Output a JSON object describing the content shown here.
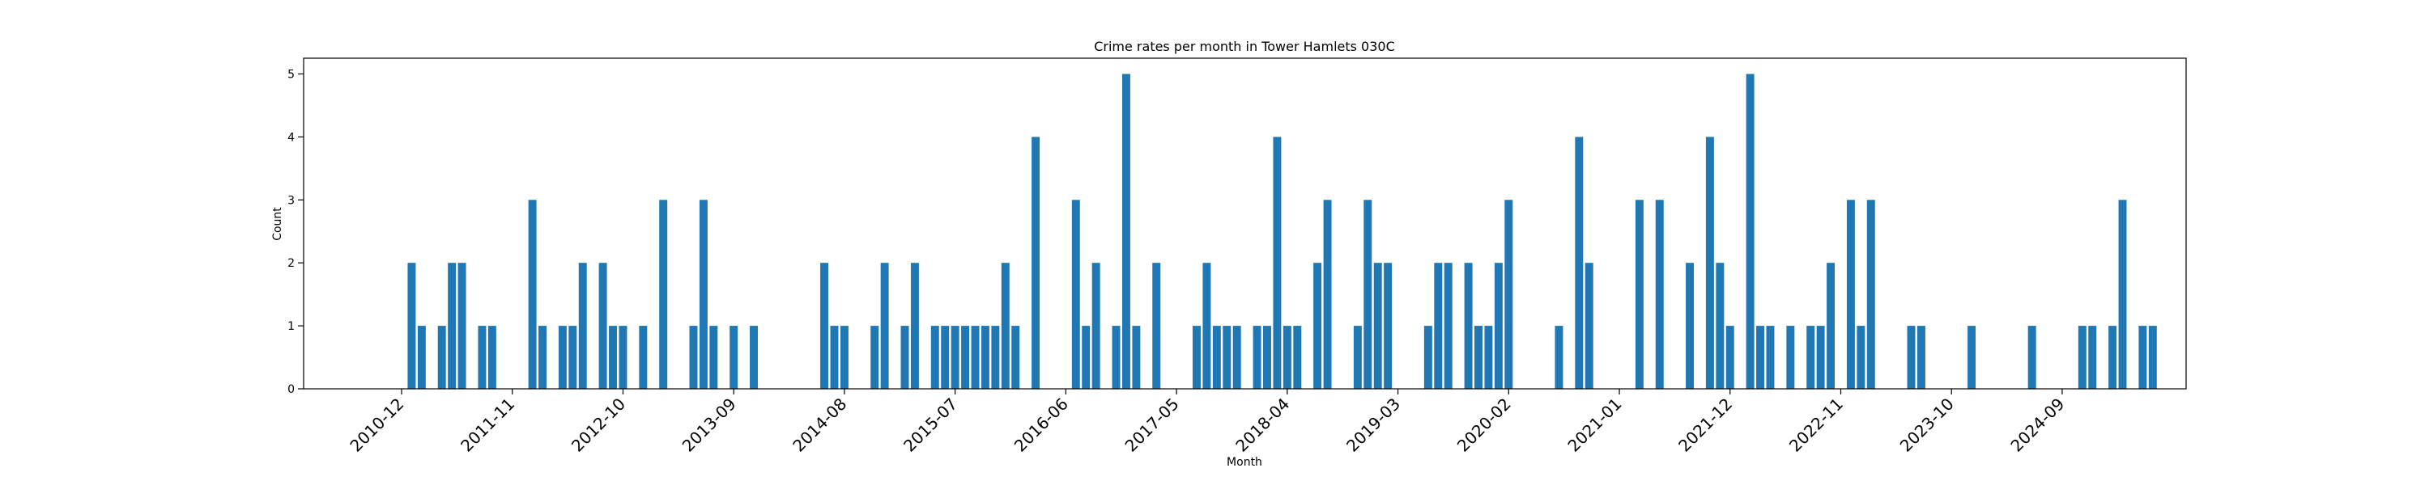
{
  "chart_data": {
    "type": "bar",
    "title": "Crime rates per month in Tower Hamlets 030C",
    "xlabel": "Month",
    "ylabel": "Count",
    "x_tick_labels": [
      "2010-12",
      "2011-11",
      "2012-10",
      "2013-09",
      "2014-08",
      "2015-07",
      "2016-06",
      "2017-05",
      "2018-04",
      "2019-03",
      "2020-02",
      "2021-01",
      "2021-12",
      "2022-11",
      "2023-10",
      "2024-09"
    ],
    "y_tick_labels": [
      "0",
      "1",
      "2",
      "3",
      "4",
      "5"
    ],
    "ylim": [
      0,
      5.25
    ],
    "grid": false,
    "bar_color": "#1f77b4",
    "series": [
      {
        "points": [
          {
            "month": "2011-01",
            "value": 2
          },
          {
            "month": "2011-02",
            "value": 1
          },
          {
            "month": "2011-04",
            "value": 1
          },
          {
            "month": "2011-05",
            "value": 2
          },
          {
            "month": "2011-06",
            "value": 2
          },
          {
            "month": "2011-08",
            "value": 1
          },
          {
            "month": "2011-09",
            "value": 1
          },
          {
            "month": "2012-01",
            "value": 3
          },
          {
            "month": "2012-02",
            "value": 1
          },
          {
            "month": "2012-04",
            "value": 1
          },
          {
            "month": "2012-05",
            "value": 1
          },
          {
            "month": "2012-06",
            "value": 2
          },
          {
            "month": "2012-08",
            "value": 2
          },
          {
            "month": "2012-09",
            "value": 1
          },
          {
            "month": "2012-10",
            "value": 1
          },
          {
            "month": "2012-12",
            "value": 1
          },
          {
            "month": "2013-02",
            "value": 3
          },
          {
            "month": "2013-05",
            "value": 1
          },
          {
            "month": "2013-06",
            "value": 3
          },
          {
            "month": "2013-07",
            "value": 1
          },
          {
            "month": "2013-09",
            "value": 1
          },
          {
            "month": "2013-11",
            "value": 1
          },
          {
            "month": "2014-06",
            "value": 2
          },
          {
            "month": "2014-07",
            "value": 1
          },
          {
            "month": "2014-08",
            "value": 1
          },
          {
            "month": "2014-11",
            "value": 1
          },
          {
            "month": "2014-12",
            "value": 2
          },
          {
            "month": "2015-02",
            "value": 1
          },
          {
            "month": "2015-03",
            "value": 2
          },
          {
            "month": "2015-05",
            "value": 1
          },
          {
            "month": "2015-06",
            "value": 1
          },
          {
            "month": "2015-07",
            "value": 1
          },
          {
            "month": "2015-08",
            "value": 1
          },
          {
            "month": "2015-09",
            "value": 1
          },
          {
            "month": "2015-10",
            "value": 1
          },
          {
            "month": "2015-11",
            "value": 1
          },
          {
            "month": "2015-12",
            "value": 2
          },
          {
            "month": "2016-01",
            "value": 1
          },
          {
            "month": "2016-03",
            "value": 4
          },
          {
            "month": "2016-07",
            "value": 3
          },
          {
            "month": "2016-08",
            "value": 1
          },
          {
            "month": "2016-09",
            "value": 2
          },
          {
            "month": "2016-11",
            "value": 1
          },
          {
            "month": "2016-12",
            "value": 5
          },
          {
            "month": "2017-01",
            "value": 1
          },
          {
            "month": "2017-03",
            "value": 2
          },
          {
            "month": "2017-07",
            "value": 1
          },
          {
            "month": "2017-08",
            "value": 2
          },
          {
            "month": "2017-09",
            "value": 1
          },
          {
            "month": "2017-10",
            "value": 1
          },
          {
            "month": "2017-11",
            "value": 1
          },
          {
            "month": "2018-01",
            "value": 1
          },
          {
            "month": "2018-02",
            "value": 1
          },
          {
            "month": "2018-03",
            "value": 4
          },
          {
            "month": "2018-04",
            "value": 1
          },
          {
            "month": "2018-05",
            "value": 1
          },
          {
            "month": "2018-07",
            "value": 2
          },
          {
            "month": "2018-08",
            "value": 3
          },
          {
            "month": "2018-11",
            "value": 1
          },
          {
            "month": "2018-12",
            "value": 3
          },
          {
            "month": "2019-01",
            "value": 2
          },
          {
            "month": "2019-02",
            "value": 2
          },
          {
            "month": "2019-06",
            "value": 1
          },
          {
            "month": "2019-07",
            "value": 2
          },
          {
            "month": "2019-08",
            "value": 2
          },
          {
            "month": "2019-10",
            "value": 2
          },
          {
            "month": "2019-11",
            "value": 1
          },
          {
            "month": "2019-12",
            "value": 1
          },
          {
            "month": "2020-01",
            "value": 2
          },
          {
            "month": "2020-02",
            "value": 3
          },
          {
            "month": "2020-07",
            "value": 1
          },
          {
            "month": "2020-09",
            "value": 4
          },
          {
            "month": "2020-10",
            "value": 2
          },
          {
            "month": "2021-03",
            "value": 3
          },
          {
            "month": "2021-05",
            "value": 3
          },
          {
            "month": "2021-08",
            "value": 2
          },
          {
            "month": "2021-10",
            "value": 4
          },
          {
            "month": "2021-11",
            "value": 2
          },
          {
            "month": "2021-12",
            "value": 1
          },
          {
            "month": "2022-02",
            "value": 5
          },
          {
            "month": "2022-03",
            "value": 1
          },
          {
            "month": "2022-04",
            "value": 1
          },
          {
            "month": "2022-06",
            "value": 1
          },
          {
            "month": "2022-08",
            "value": 1
          },
          {
            "month": "2022-09",
            "value": 1
          },
          {
            "month": "2022-10",
            "value": 2
          },
          {
            "month": "2022-12",
            "value": 3
          },
          {
            "month": "2023-01",
            "value": 1
          },
          {
            "month": "2023-02",
            "value": 3
          },
          {
            "month": "2023-06",
            "value": 1
          },
          {
            "month": "2023-07",
            "value": 1
          },
          {
            "month": "2023-12",
            "value": 1
          },
          {
            "month": "2024-06",
            "value": 1
          },
          {
            "month": "2024-11",
            "value": 1
          },
          {
            "month": "2024-12",
            "value": 1
          },
          {
            "month": "2025-02",
            "value": 1
          },
          {
            "month": "2025-03",
            "value": 3
          },
          {
            "month": "2025-05",
            "value": 1
          },
          {
            "month": "2025-06",
            "value": 1
          }
        ]
      }
    ]
  }
}
